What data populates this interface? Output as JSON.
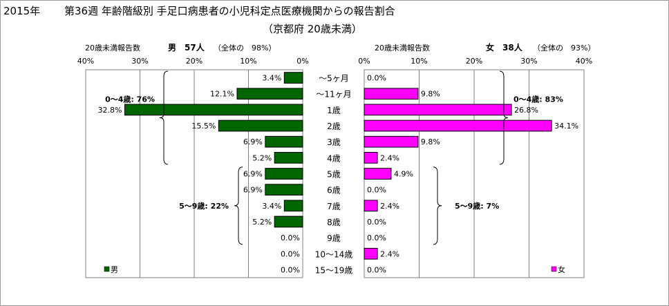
{
  "header": {
    "year": "2015年",
    "title": "第36週 年齢階級別 手足口病患者の小児科定点医療機関からの報告割合",
    "subtitle": "（京都府 20歳未満）"
  },
  "chart_data": {
    "type": "bar",
    "orientation": "horizontal-butterfly",
    "categories": [
      "～5ヶ月",
      "～11ヶ月",
      "1歳",
      "2歳",
      "3歳",
      "4歳",
      "5歳",
      "6歳",
      "7歳",
      "8歳",
      "9歳",
      "10～14歳",
      "15～19歳"
    ],
    "xlim": [
      0,
      40
    ],
    "x_ticks": [
      "40%",
      "30%",
      "20%",
      "10%",
      "0%"
    ],
    "x_ticks_right": [
      "0%",
      "10%",
      "20%",
      "30%",
      "40%"
    ],
    "grid": true,
    "series": [
      {
        "name": "男",
        "side": "left",
        "color": "#006400",
        "header_label": "20歳未満報告数",
        "header_main": "男　57人",
        "header_note": "（全体の　98%）",
        "values": [
          3.4,
          12.1,
          32.8,
          15.5,
          6.9,
          5.2,
          6.9,
          6.9,
          3.4,
          5.2,
          0.0,
          0.0,
          0.0
        ],
        "labels": [
          "3.4%",
          "12.1%",
          "32.8%",
          "15.5%",
          "6.9%",
          "5.2%",
          "6.9%",
          "6.9%",
          "3.4%",
          "5.2%",
          "0.0%",
          "0.0%",
          "0.0%"
        ],
        "groups": [
          {
            "label": "0～4歳: 76%",
            "from": 0,
            "to": 5
          },
          {
            "label": "5～9歳: 22%",
            "from": 6,
            "to": 10
          }
        ],
        "legend": "男"
      },
      {
        "name": "女",
        "side": "right",
        "color": "#FF00FF",
        "header_label": "20歳未満報告数",
        "header_main": "女　38人",
        "header_note": "（全体の　93%）",
        "values": [
          0.0,
          9.8,
          26.8,
          34.1,
          9.8,
          2.4,
          4.9,
          0.0,
          2.4,
          0.0,
          0.0,
          2.4,
          0.0
        ],
        "labels": [
          "0.0%",
          "9.8%",
          "26.8%",
          "34.1%",
          "9.8%",
          "2.4%",
          "4.9%",
          "0.0%",
          "2.4%",
          "0.0%",
          "0.0%",
          "2.4%",
          "0.0%"
        ],
        "groups": [
          {
            "label": "0～4歳: 83%",
            "from": 0,
            "to": 5
          },
          {
            "label": "5～9歳: 7%",
            "from": 6,
            "to": 10
          }
        ],
        "legend": "女"
      }
    ]
  }
}
